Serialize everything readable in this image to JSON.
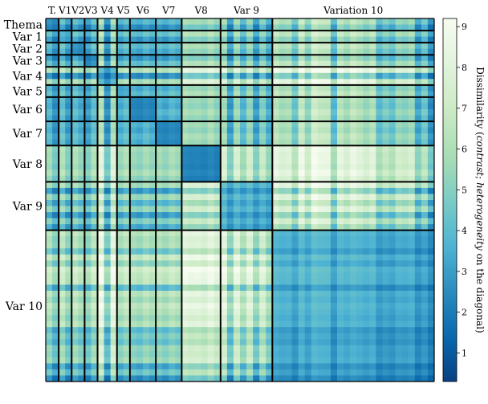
{
  "chart_data": {
    "type": "heatmap",
    "title": "",
    "top_labels": [
      "T.",
      "V1",
      "V2",
      "V3",
      "V4",
      "V5",
      "V6",
      "V7",
      "V8",
      "Var 9",
      "Variation 10"
    ],
    "left_labels": [
      "Thema",
      "Var 1",
      "Var 2",
      "Var 3",
      "Var 4",
      "Var 5",
      "Var 6",
      "Var 7",
      "Var 8",
      "Var 9",
      "Var 10"
    ],
    "section_sizes": [
      2,
      2,
      2,
      2,
      3,
      2,
      4,
      4,
      6,
      8,
      25
    ],
    "colorbar": {
      "label_parts": [
        "Dissimilarity (",
        "contrast",
        "; ",
        "heterogeneity",
        " on the diagonal)"
      ],
      "min": 0.3,
      "max": 9.2,
      "ticks": [
        1,
        2,
        3,
        4,
        5,
        6,
        7,
        8,
        9
      ],
      "tick_labels": [
        "1",
        "2",
        "3",
        "4",
        "5",
        "6",
        "7",
        "8",
        "9"
      ],
      "colormap": "GnBu"
    },
    "diagonal_heterogeneity": [
      3.0,
      3.4,
      2.5,
      2.3,
      2.8,
      3.2,
      2.2,
      2.3,
      1.2,
      3.5,
      2.4
    ],
    "section_profile": [
      4.5,
      3.5,
      3.4,
      3.0,
      4.8,
      3.5,
      3.0,
      3.4,
      4.5,
      5.4,
      4.6
    ],
    "item_profile": [
      4.2,
      3.0,
      4.1,
      2.8,
      3.9,
      3.2,
      2.6,
      3.8,
      6.8,
      3.1,
      6.4,
      3.4,
      4.0,
      3.2,
      2.9,
      3.5,
      3.0,
      3.6,
      3.2,
      3.8,
      3.4,
      6.2,
      5.9,
      6.0,
      5.7,
      6.3,
      5.6,
      6.6,
      3.8,
      6.4,
      4.6,
      6.2,
      3.8,
      5.8,
      4.2,
      6.8,
      6.2,
      6.4,
      4.8,
      7.2,
      5.6,
      7.6,
      7.1,
      7.0,
      4.3,
      6.8,
      6.1,
      7.0,
      6.5,
      5.9,
      6.6,
      4.4,
      5.2,
      4.6,
      5.8,
      5.5,
      6.0,
      3.6,
      4.9,
      3.0
    ],
    "grid_lines": true
  }
}
